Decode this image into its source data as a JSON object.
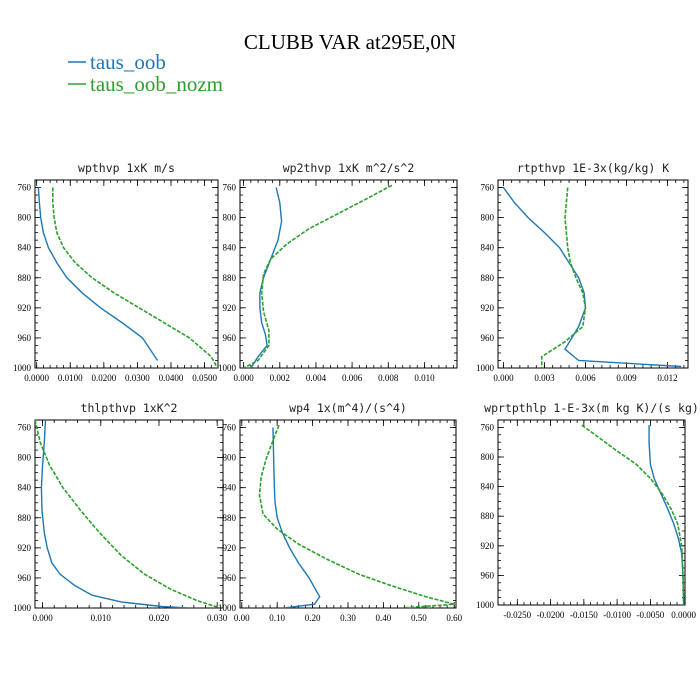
{
  "figure": {
    "title": "CLUBB VAR at295E,0N",
    "colors": {
      "taus_oob": "#1f77b4",
      "taus_oob_nozm": "#2ca02c"
    }
  },
  "legend": {
    "items": [
      {
        "label": "taus_oob",
        "color": "#1f77b4",
        "dash": "solid"
      },
      {
        "label": "taus_oob_nozm",
        "color": "#2ca02c",
        "dash": "dashed"
      }
    ]
  },
  "chart_data": [
    {
      "type": "line",
      "title": "wpthvp   1xK m/s",
      "xlabel": "",
      "ylabel": "",
      "xlim": [
        -0.0005,
        0.054
      ],
      "ylim": [
        1000,
        750
      ],
      "xticks": [
        0.0,
        0.01,
        0.02,
        0.03,
        0.04,
        0.05
      ],
      "xtick_labels": [
        "0.0000",
        "0.0100",
        "0.0200",
        "0.0300",
        "0.0400",
        "0.0500"
      ],
      "yticks": [
        760,
        800,
        840,
        880,
        920,
        960,
        1000
      ],
      "ytick_labels": [
        "760",
        "800",
        "840",
        "880",
        "920",
        "960",
        "1000"
      ],
      "series": [
        {
          "name": "taus_oob",
          "x": [
            0.0005,
            0.0008,
            0.0012,
            0.002,
            0.0035,
            0.006,
            0.009,
            0.0135,
            0.019,
            0.0255,
            0.0315,
            0.036
          ],
          "y": [
            760,
            780,
            800,
            820,
            840,
            860,
            880,
            900,
            920,
            940,
            960,
            990
          ]
        },
        {
          "name": "taus_oob_nozm",
          "x": [
            0.0048,
            0.0048,
            0.0052,
            0.006,
            0.008,
            0.0115,
            0.0165,
            0.023,
            0.0305,
            0.038,
            0.0455,
            0.052,
            0.0538
          ],
          "y": [
            760,
            780,
            800,
            820,
            840,
            860,
            880,
            900,
            920,
            940,
            960,
            985,
            1000
          ]
        }
      ]
    },
    {
      "type": "line",
      "title": "wp2thvp   1xK m^2/s^2",
      "xlabel": "",
      "ylabel": "",
      "xlim": [
        -0.0002,
        0.0118
      ],
      "ylim": [
        1000,
        750
      ],
      "xticks": [
        0.0,
        0.002,
        0.004,
        0.006,
        0.008,
        0.01
      ],
      "xtick_labels": [
        "0.000",
        "0.002",
        "0.004",
        "0.006",
        "0.008",
        "0.010"
      ],
      "yticks": [
        760,
        800,
        840,
        880,
        920,
        960,
        1000
      ],
      "ytick_labels": [
        "760",
        "800",
        "840",
        "880",
        "920",
        "960",
        "1000"
      ],
      "series": [
        {
          "name": "taus_oob",
          "x": [
            0.0018,
            0.002,
            0.0021,
            0.0019,
            0.0015,
            0.0011,
            0.0009,
            0.0009,
            0.001,
            0.0012,
            0.0013,
            0.0008,
            0.0004
          ],
          "y": [
            760,
            780,
            805,
            830,
            855,
            880,
            900,
            920,
            940,
            955,
            970,
            985,
            1000
          ]
        },
        {
          "name": "taus_oob_nozm",
          "x": [
            0.0082,
            0.0068,
            0.0052,
            0.0036,
            0.0024,
            0.0015,
            0.0011,
            0.001,
            0.0011,
            0.0014,
            0.0014,
            0.0008,
            0.0
          ],
          "y": [
            757,
            775,
            795,
            815,
            835,
            855,
            875,
            900,
            925,
            950,
            970,
            990,
            1000
          ]
        }
      ]
    },
    {
      "type": "line",
      "title": "rtpthvp   1E-3x(kg/kg) K",
      "xlabel": "",
      "ylabel": "",
      "xlim": [
        -0.0004,
        0.0135
      ],
      "ylim": [
        1000,
        750
      ],
      "xticks": [
        0.0,
        0.003,
        0.006,
        0.009,
        0.012
      ],
      "xtick_labels": [
        "0.000",
        "0.003",
        "0.006",
        "0.009",
        "0.012"
      ],
      "yticks": [
        760,
        800,
        840,
        880,
        920,
        960,
        1000
      ],
      "ytick_labels": [
        "760",
        "800",
        "840",
        "880",
        "920",
        "960",
        "1000"
      ],
      "series": [
        {
          "name": "taus_oob",
          "x": [
            0.0,
            0.0008,
            0.0018,
            0.003,
            0.0041,
            0.0048,
            0.0055,
            0.0059,
            0.006,
            0.0055,
            0.0045,
            0.0055,
            0.013
          ],
          "y": [
            760,
            780,
            800,
            820,
            840,
            860,
            880,
            900,
            920,
            945,
            975,
            990,
            998
          ]
        },
        {
          "name": "taus_oob_nozm",
          "x": [
            0.0047,
            0.0046,
            0.0045,
            0.0046,
            0.0047,
            0.0049,
            0.0053,
            0.0058,
            0.006,
            0.0058,
            0.0045,
            0.0028,
            0.0028
          ],
          "y": [
            760,
            780,
            800,
            820,
            840,
            860,
            880,
            900,
            920,
            945,
            965,
            985,
            1000
          ]
        }
      ]
    },
    {
      "type": "line",
      "title": "thlpthvp   1xK^2",
      "xlabel": "",
      "ylabel": "",
      "xlim": [
        -0.0013,
        0.031
      ],
      "ylim": [
        1000,
        750
      ],
      "xticks": [
        0.0,
        0.01,
        0.02,
        0.03
      ],
      "xtick_labels": [
        "0.000",
        "0.010",
        "0.020",
        "0.030"
      ],
      "yticks": [
        760,
        800,
        840,
        880,
        920,
        960,
        1000
      ],
      "ytick_labels": [
        "760",
        "800",
        "840",
        "880",
        "920",
        "960",
        "1000"
      ],
      "series": [
        {
          "name": "taus_oob",
          "x": [
            0.0005,
            0.0003,
            0.0,
            -0.0002,
            -0.0001,
            0.0003,
            0.0008,
            0.0016,
            0.003,
            0.0055,
            0.0085,
            0.0135,
            0.0205,
            0.025
          ],
          "y": [
            750,
            780,
            810,
            840,
            870,
            900,
            920,
            940,
            955,
            970,
            983,
            992,
            998,
            1000
          ]
        },
        {
          "name": "taus_oob_nozm",
          "x": [
            -0.0013,
            -0.0004,
            0.0012,
            0.0035,
            0.0065,
            0.0098,
            0.0135,
            0.0175,
            0.022,
            0.0265,
            0.0305
          ],
          "y": [
            750,
            780,
            810,
            840,
            870,
            900,
            930,
            955,
            975,
            990,
            1000
          ]
        }
      ]
    },
    {
      "type": "line",
      "title": "wp4   1x(m^4)/(s^4)",
      "xlabel": "",
      "ylabel": "",
      "xlim": [
        -0.005,
        0.605
      ],
      "ylim": [
        1000,
        750
      ],
      "xticks": [
        0.0,
        0.1,
        0.2,
        0.3,
        0.4,
        0.5,
        0.6
      ],
      "xtick_labels": [
        "0.00",
        "0.10",
        "0.20",
        "0.30",
        "0.40",
        "0.50",
        "0.60"
      ],
      "yticks": [
        760,
        800,
        840,
        880,
        920,
        960,
        1000
      ],
      "ytick_labels": [
        "760",
        "800",
        "840",
        "880",
        "920",
        "960",
        "1000"
      ],
      "series": [
        {
          "name": "taus_oob",
          "x": [
            0.088,
            0.09,
            0.092,
            0.094,
            0.1,
            0.115,
            0.135,
            0.16,
            0.19,
            0.22,
            0.205,
            0.12
          ],
          "y": [
            760,
            800,
            840,
            860,
            880,
            900,
            920,
            940,
            960,
            985,
            995,
            1000
          ]
        },
        {
          "name": "taus_oob_nozm",
          "x": [
            0.105,
            0.09,
            0.07,
            0.055,
            0.05,
            0.06,
            0.1,
            0.16,
            0.24,
            0.33,
            0.42,
            0.52,
            0.6,
            0.45
          ],
          "y": [
            757,
            775,
            800,
            825,
            850,
            875,
            895,
            915,
            935,
            955,
            970,
            985,
            995,
            1000
          ]
        }
      ]
    },
    {
      "type": "line",
      "title": "wprtpthlp   1-E-3x(m kg K)/(s kg)",
      "xlabel": "",
      "ylabel": "",
      "xlim": [
        -0.0279,
        0.0002
      ],
      "ylim": [
        1000,
        750
      ],
      "xticks": [
        -0.025,
        -0.02,
        -0.015,
        -0.01,
        -0.005,
        0.0
      ],
      "xtick_labels": [
        "-0.0250",
        "-0.0200",
        "-0.0150",
        "-0.0100",
        "-0.0050",
        "0.0000"
      ],
      "yticks": [
        760,
        800,
        840,
        880,
        920,
        960,
        1000
      ],
      "ytick_labels": [
        "760",
        "800",
        "840",
        "880",
        "920",
        "960",
        "1000"
      ],
      "series": [
        {
          "name": "taus_oob",
          "x": [
            -0.0052,
            -0.0052,
            -0.005,
            -0.0044,
            -0.0034,
            -0.0024,
            -0.0015,
            -0.0008,
            -0.0003,
            -0.0001,
            0.0
          ],
          "y": [
            757,
            780,
            810,
            830,
            850,
            870,
            890,
            910,
            930,
            960,
            1000
          ]
        },
        {
          "name": "taus_oob_nozm",
          "x": [
            -0.0153,
            -0.0133,
            -0.0103,
            -0.0071,
            -0.0049,
            -0.0032,
            -0.0019,
            -0.0009,
            -0.0003,
            -0.0001,
            0.0
          ],
          "y": [
            757,
            770,
            790,
            810,
            830,
            850,
            870,
            890,
            920,
            960,
            1000
          ]
        }
      ]
    }
  ]
}
